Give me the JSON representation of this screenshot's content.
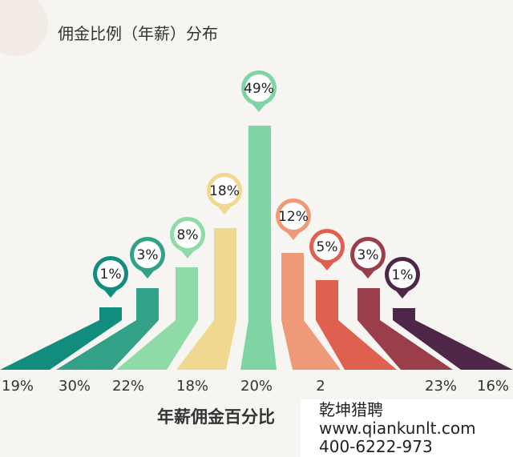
{
  "chart_data": {
    "type": "bar",
    "title": "佣金比例（年薪）分布",
    "xlabel": "年薪佣金百分比",
    "categories": [
      "19%",
      "30%",
      "22%",
      "18%",
      "20%",
      "2",
      "",
      "23%",
      "16%"
    ],
    "values": [
      1,
      3,
      8,
      18,
      49,
      12,
      5,
      3,
      1
    ],
    "value_labels": [
      "1%",
      "3%",
      "8%",
      "18%",
      "49%",
      "12%",
      "5%",
      "3%",
      "1%"
    ],
    "colors": [
      "#128c7c",
      "#33a088",
      "#8edba7",
      "#f1d890",
      "#7fd4a4",
      "#ee9a78",
      "#e0604f",
      "#9b3e4b",
      "#4e2647"
    ],
    "grid": false,
    "legend": "none"
  },
  "watermark": {
    "name": "乾坤猎聘",
    "url": "www.qiankunlt.com",
    "phone": "400-6222-973"
  }
}
